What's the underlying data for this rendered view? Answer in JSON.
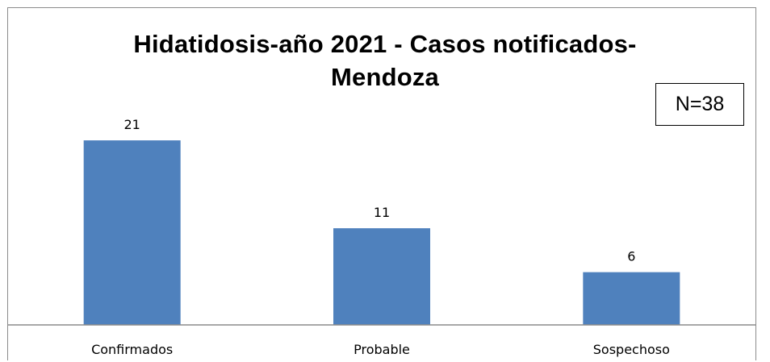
{
  "chart_data": {
    "type": "bar",
    "title_line1": "Hidatidosis-año 2021 - Casos notificados-",
    "title_line2": "Mendoza",
    "annotation": "N=38",
    "categories": [
      "Confirmados",
      "Probable",
      "Sospechoso"
    ],
    "values": [
      21,
      11,
      6
    ],
    "ylim": [
      0,
      24
    ],
    "grid": false,
    "legend": "none",
    "bar_color": "#4f81bd"
  }
}
